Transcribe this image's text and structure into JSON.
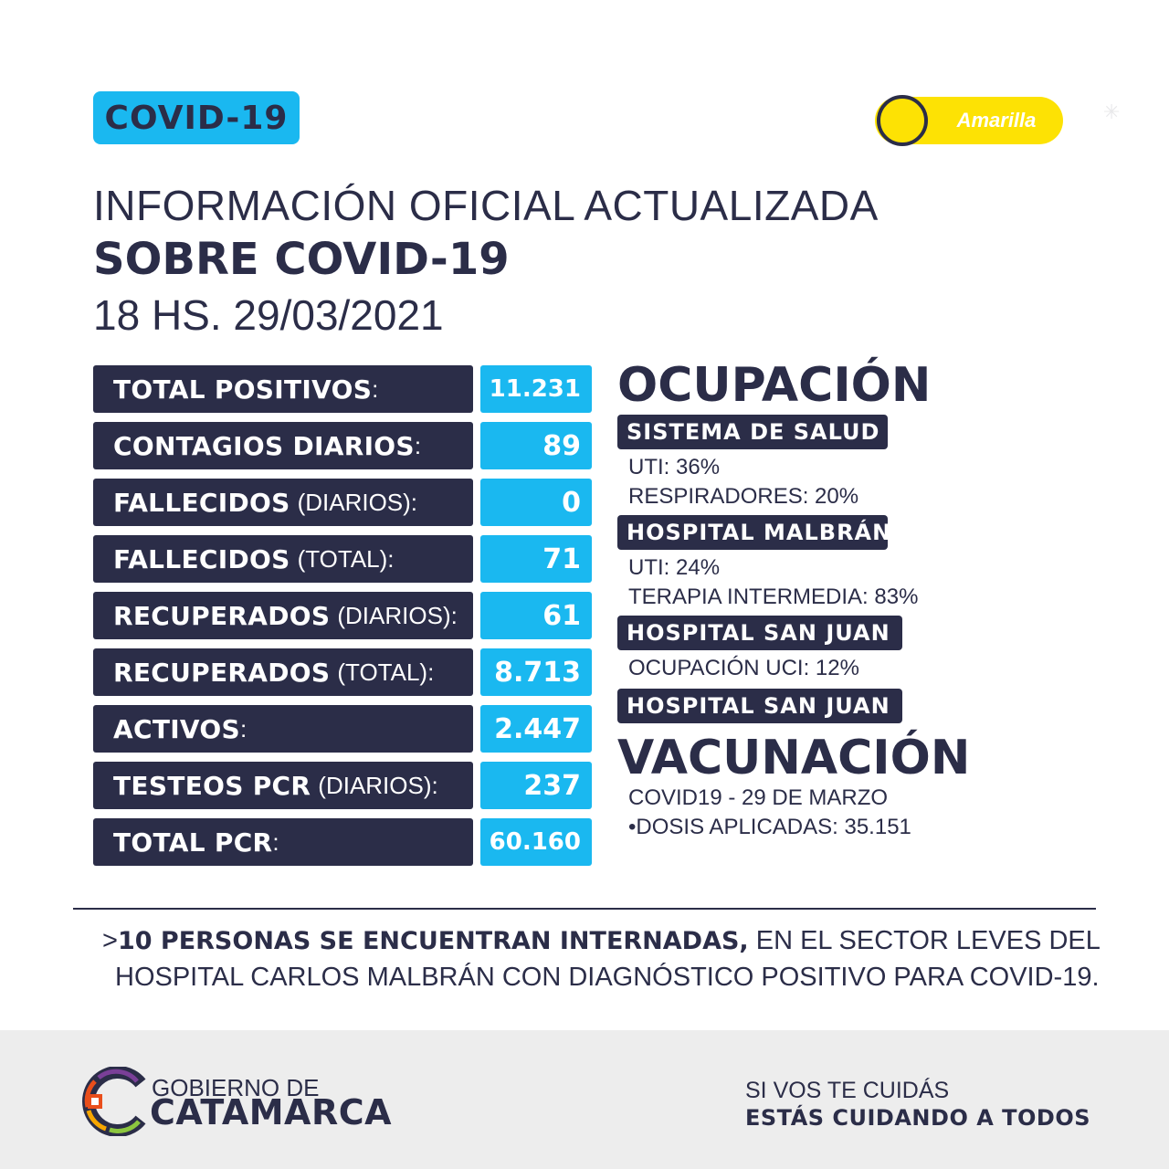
{
  "header": {
    "badge": "COVID-19",
    "alert_level": "Amarilla",
    "alert_color": "#fde204",
    "title_line1": "INFORMACIÓN OFICIAL ACTUALIZADA",
    "title_line2": "SOBRE COVID-19",
    "title_line3": "18 HS. 29/03/2021"
  },
  "stats": [
    {
      "label": "TOTAL POSITIVOS",
      "qualifier": "",
      "value": "11.231"
    },
    {
      "label": "CONTAGIOS DIARIOS",
      "qualifier": "",
      "value": "89"
    },
    {
      "label": "FALLECIDOS",
      "qualifier": "(DIARIOS):",
      "value": "0"
    },
    {
      "label": "FALLECIDOS",
      "qualifier": "(TOTAL):",
      "value": "71"
    },
    {
      "label": "RECUPERADOS",
      "qualifier": "(DIARIOS):",
      "value": "61"
    },
    {
      "label": "RECUPERADOS",
      "qualifier": "(TOTAL):",
      "value": "8.713"
    },
    {
      "label": "ACTIVOS",
      "qualifier": "",
      "value": "2.447"
    },
    {
      "label": "TESTEOS PCR",
      "qualifier": "(DIARIOS):",
      "value": "237"
    },
    {
      "label": "TOTAL PCR",
      "qualifier": "",
      "value": "60.160"
    }
  ],
  "occupancy": {
    "title": "OCUPACIÓN",
    "sections": [
      {
        "tag": "SISTEMA DE SALUD",
        "lines": [
          "UTI: 36%",
          "RESPIRADORES: 20%"
        ]
      },
      {
        "tag": "HOSPITAL MALBRÁN",
        "lines": [
          "UTI: 24%",
          "TERAPIA INTERMEDIA: 83%"
        ]
      },
      {
        "tag": "HOSPITAL SAN JUAN",
        "lines": [
          "OCUPACIÓN UCI: 12%"
        ]
      },
      {
        "tag": "HOSPITAL SAN JUAN",
        "lines": []
      }
    ]
  },
  "vaccination": {
    "title": "VACUNACIÓN",
    "line1": "COVID19 - 29 DE MARZO",
    "line2": "•DOSIS APLICADAS: 35.151"
  },
  "note": {
    "prefix": ">",
    "bold": "10 PERSONAS SE ENCUENTRAN INTERNADAS,",
    "rest": " EN EL SECTOR LEVES DEL",
    "line2": "HOSPITAL CARLOS MALBRÁN CON DIAGNÓSTICO POSITIVO PARA COVID-19."
  },
  "footer": {
    "logo_top": "GOBIERNO DE",
    "logo_bottom": "CATAMARCA",
    "slogan1": "SI VOS TE CUIDÁS",
    "slogan2": "ESTÁS CUIDANDO A TODOS"
  },
  "colors": {
    "navy": "#2b2d48",
    "cyan": "#1ab8f0",
    "footer_bg": "#ededed"
  }
}
